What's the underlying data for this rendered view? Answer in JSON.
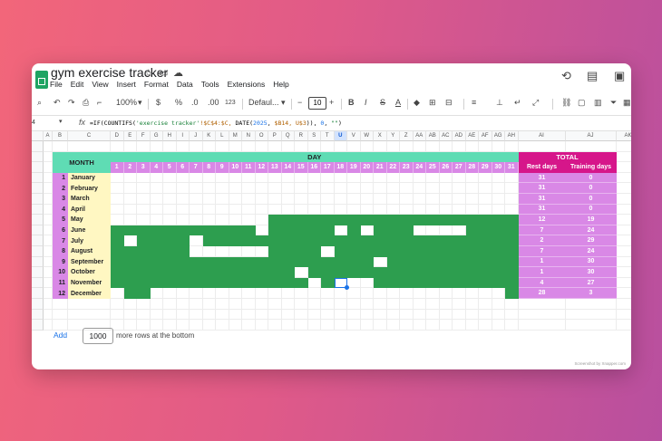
{
  "app": {
    "title": "gym exercise tracker",
    "menu": [
      "File",
      "Edit",
      "View",
      "Insert",
      "Format",
      "Data",
      "Tools",
      "Extensions",
      "Help"
    ]
  },
  "toolbar": {
    "zoom": "100%",
    "currency": "$",
    "percent": "%",
    "decimal_less": ".0",
    "decimal_more": ".00",
    "number_format": "123",
    "font": "Defaul...",
    "font_size": "10",
    "bold": "B",
    "italic": "I",
    "strike": "S",
    "text_color": "A"
  },
  "formula_bar": {
    "cell_ref": "4",
    "fx": "fx",
    "formula_parts": {
      "p1": "=IF(COUNTIFS(",
      "p2": "'exercise tracker'",
      "p3": "!$C$4:$C,",
      "p4": " DATE(",
      "p5": "2025",
      "p6": ",",
      "p7": " $B14, U$3",
      "p8": ")), ",
      "p9": "0",
      "p10": ", ",
      "p11": "\"\"",
      "p12": ")"
    }
  },
  "columns": [
    "A",
    "B",
    "C",
    "D",
    "E",
    "F",
    "G",
    "H",
    "I",
    "J",
    "K",
    "L",
    "M",
    "N",
    "O",
    "P",
    "Q",
    "R",
    "S",
    "T",
    "U",
    "V",
    "W",
    "X",
    "Y",
    "Z",
    "AA",
    "AB",
    "AC",
    "AD",
    "AE",
    "AF",
    "AG",
    "AH",
    "AI",
    "AJ",
    "AK"
  ],
  "rows": [
    "",
    "",
    "",
    "",
    "",
    "",
    "",
    "",
    "",
    "",
    "",
    "",
    "",
    "",
    "",
    "",
    "",
    ""
  ],
  "headers": {
    "month": "MONTH",
    "day": "DAY",
    "total": "TOTAL",
    "rest_days": "Rest days",
    "training_days": "Training days"
  },
  "day_numbers": [
    "1",
    "2",
    "3",
    "4",
    "5",
    "6",
    "7",
    "8",
    "9",
    "10",
    "11",
    "12",
    "13",
    "14",
    "15",
    "16",
    "17",
    "18",
    "19",
    "20",
    "21",
    "22",
    "23",
    "24",
    "25",
    "26",
    "27",
    "28",
    "29",
    "30",
    "31"
  ],
  "months": [
    {
      "num": "1",
      "name": "January",
      "rest": "31",
      "training": "0",
      "rest_day_list": []
    },
    {
      "num": "2",
      "name": "February",
      "rest": "31",
      "training": "0",
      "rest_day_list": []
    },
    {
      "num": "3",
      "name": "March",
      "rest": "31",
      "training": "0",
      "rest_day_list": []
    },
    {
      "num": "4",
      "name": "April",
      "rest": "31",
      "training": "0",
      "rest_day_list": []
    },
    {
      "num": "5",
      "name": "May",
      "rest": "12",
      "training": "19",
      "rest_day_list": [
        1,
        2,
        3,
        4,
        5,
        6,
        7,
        8,
        9,
        10,
        11,
        12
      ]
    },
    {
      "num": "6",
      "name": "June",
      "rest": "7",
      "training": "24",
      "rest_day_list": [
        12,
        18,
        20,
        24,
        25,
        26,
        27
      ]
    },
    {
      "num": "7",
      "name": "July",
      "rest": "2",
      "training": "29",
      "rest_day_list": [
        2,
        7
      ]
    },
    {
      "num": "8",
      "name": "August",
      "rest": "7",
      "training": "24",
      "rest_day_list": [
        7,
        8,
        9,
        10,
        11,
        12,
        17
      ]
    },
    {
      "num": "9",
      "name": "September",
      "rest": "1",
      "training": "30",
      "rest_day_list": [
        21
      ]
    },
    {
      "num": "10",
      "name": "October",
      "rest": "1",
      "training": "30",
      "rest_day_list": [
        15
      ]
    },
    {
      "num": "11",
      "name": "November",
      "rest": "4",
      "training": "27",
      "rest_day_list": [
        16,
        18,
        19,
        20
      ]
    },
    {
      "num": "12",
      "name": "December",
      "rest": "28",
      "training": "3",
      "rest_day_list": [
        1,
        4,
        5,
        6,
        7,
        8,
        9,
        10,
        11,
        12,
        13,
        14,
        15,
        16,
        17,
        18,
        19,
        20,
        21,
        22,
        23,
        24,
        25,
        26,
        27,
        28,
        29,
        30
      ]
    }
  ],
  "footer": {
    "add": "Add",
    "rows_value": "1000",
    "rows_text": "more rows at the bottom"
  },
  "watermark": "Screenshot by Xnapper.com",
  "colors": {
    "accent_green": "#5fdcb4",
    "training_green": "#2d9e4f",
    "magenta": "#d6168a",
    "lilac": "#d988e6",
    "month_yellow": "#fff7c2",
    "selection_blue": "#1a73e8"
  }
}
